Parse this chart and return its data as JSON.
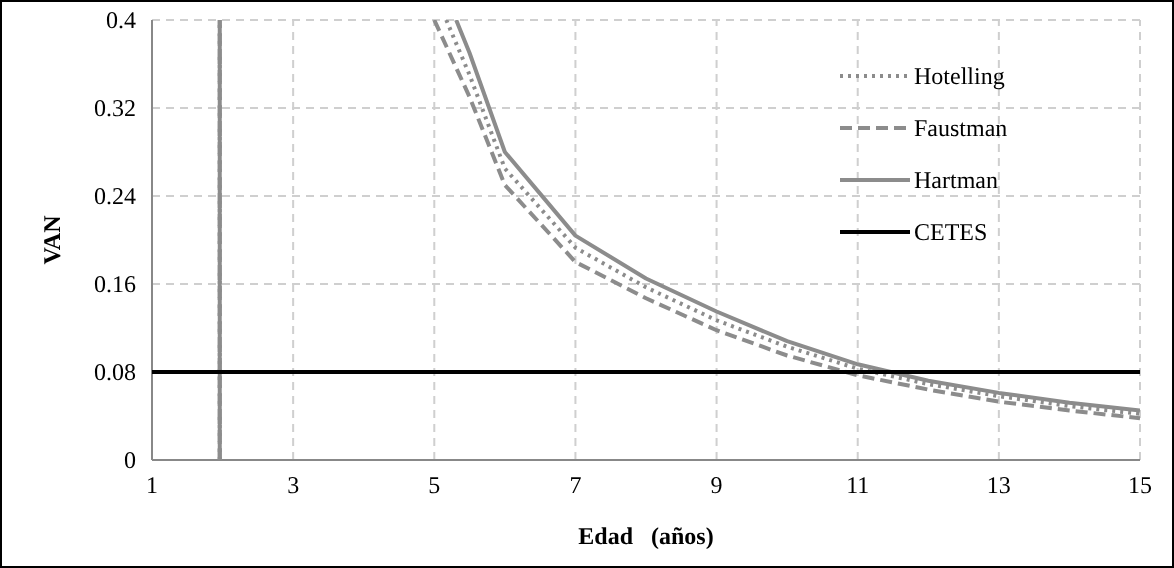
{
  "chart_data": {
    "type": "line",
    "xlabel": "Edad   (años)",
    "ylabel": "VAN",
    "xlim": [
      1,
      15
    ],
    "ylim": [
      0,
      0.4
    ],
    "xticks": [
      1,
      3,
      5,
      7,
      9,
      11,
      13,
      15
    ],
    "yticks": [
      0,
      0.08,
      0.16,
      0.24,
      0.32,
      0.4
    ],
    "grid": true,
    "legend": "top right",
    "marker": "none",
    "series": [
      {
        "name": "Hotelling",
        "color": "#8c8c8c",
        "line_style": "dotted",
        "x": [
          1.96,
          1.96,
          3,
          5.17,
          5.5,
          6,
          7,
          8,
          9,
          10,
          11,
          12,
          13,
          14,
          15
        ],
        "values": [
          0,
          0.4,
          null,
          0.4,
          0.35,
          0.265,
          0.193,
          0.157,
          0.127,
          0.103,
          0.083,
          0.069,
          0.058,
          0.049,
          0.042
        ]
      },
      {
        "name": "Faustman",
        "color": "#8c8c8c",
        "line_style": "dashed",
        "x": [
          1.96,
          1.96,
          3,
          5.0,
          5.5,
          6,
          7,
          8,
          9,
          10,
          11,
          12,
          13,
          14,
          15
        ],
        "values": [
          0,
          0.4,
          null,
          0.4,
          0.33,
          0.25,
          0.18,
          0.147,
          0.118,
          0.095,
          0.077,
          0.064,
          0.053,
          0.045,
          0.038
        ]
      },
      {
        "name": "Hartman",
        "color": "#8c8c8c",
        "line_style": "solid",
        "x": [
          1.96,
          1.96,
          3,
          5.31,
          5.5,
          6,
          7,
          8,
          9,
          10,
          11,
          12,
          13,
          14,
          15
        ],
        "values": [
          0,
          0.4,
          null,
          0.4,
          0.37,
          0.28,
          0.204,
          0.165,
          0.135,
          0.108,
          0.087,
          0.072,
          0.061,
          0.052,
          0.045
        ]
      },
      {
        "name": "CETES",
        "color": "#000000",
        "line_style": "solid",
        "x": [
          1,
          15
        ],
        "values": [
          0.08,
          0.08
        ]
      }
    ]
  }
}
